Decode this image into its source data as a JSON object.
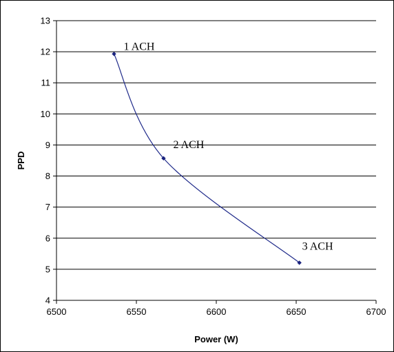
{
  "chart_data": {
    "type": "line",
    "title": "",
    "xlabel": "Power (W)",
    "ylabel": "PPD",
    "xlim": [
      6500,
      6700
    ],
    "ylim": [
      4,
      13
    ],
    "x_ticks": [
      "6500",
      "6550",
      "6600",
      "6650",
      "6700"
    ],
    "y_ticks": [
      "4",
      "5",
      "6",
      "7",
      "8",
      "9",
      "10",
      "11",
      "12",
      "13"
    ],
    "grid": "horizontal",
    "legend": "none",
    "series": [
      {
        "color": "#1f2a8a",
        "smoothed": true,
        "points": [
          {
            "x": 6536,
            "y": 11.93,
            "label": "1 ACH"
          },
          {
            "x": 6567,
            "y": 8.57,
            "label": "2 ACH"
          },
          {
            "x": 6652,
            "y": 5.21,
            "label": "3 ACH"
          }
        ]
      }
    ]
  }
}
